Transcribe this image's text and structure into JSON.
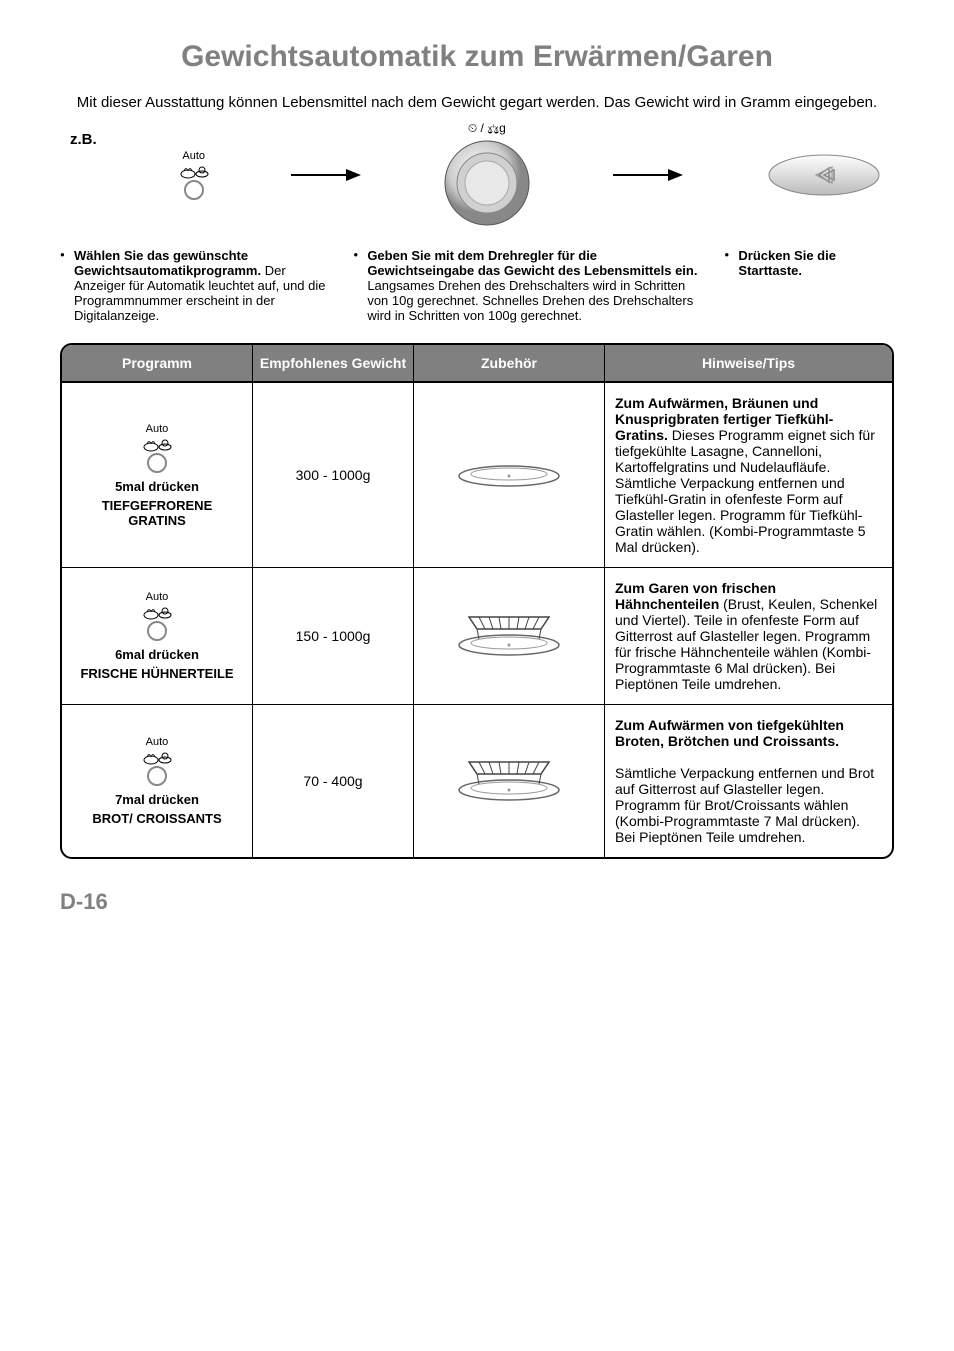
{
  "title": "Gewichtsautomatik zum Erwärmen/Garen",
  "intro": "Mit dieser Ausstattung können Lebensmittel nach dem Gewicht gegart werden. Das Gewicht wird in Gramm eingegeben.",
  "example_label": "z.B.",
  "auto_label": "Auto",
  "dial_icons": "⏲ / ⚖g",
  "steps": [
    {
      "bold": "Wählen Sie das gewünschte Gewichtsautomatikprogramm.",
      "text": " Der Anzeiger für Automatik leuchtet auf, und die Programmnummer erscheint in der Digitalanzeige."
    },
    {
      "bold": "Geben Sie mit dem Drehregler für die Gewichtseingabe das Gewicht des Lebensmittels ein.",
      "text": " Langsames Drehen des Drehschalters wird in Schritten von 10g gerechnet. Schnelles Drehen des Drehschalters wird in Schritten von 100g gerechnet."
    },
    {
      "bold": "Drücken Sie die Starttaste.",
      "text": ""
    }
  ],
  "table": {
    "headers": [
      "Programm",
      "Empfohlenes Gewicht",
      "Zubehör",
      "Hinweise/Tips"
    ],
    "rows": [
      {
        "press": "5mal drücken",
        "name": "TIEFGEFRORENE GRATINS",
        "weight": "300 - 1000g",
        "accessory": "plate",
        "tip_bold": "Zum Aufwärmen, Bräunen und Knusprigbraten fertiger Tiefkühl-Gratins.",
        "tip_text": " Dieses Programm eignet sich für tiefgekühlte Lasagne, Cannelloni, Kartoffelgratins und Nudelaufläufe. Sämtliche Verpackung entfernen und Tiefkühl-Gratin in ofenfeste Form auf Glasteller legen. Programm für Tiefkühl-Gratin wählen. (Kombi-Programmtaste 5 Mal drücken)."
      },
      {
        "press": "6mal drücken",
        "name": "FRISCHE HÜHNERTEILE",
        "weight": "150 - 1000g",
        "accessory": "rack_plate",
        "tip_bold": "Zum Garen von frischen Hähnchenteilen",
        "tip_text": " (Brust, Keulen, Schenkel und Viertel). Teile in ofenfeste Form auf Gitterrost auf Glasteller legen. Programm für frische Hähnchenteile wählen (Kombi-Programmtaste 6 Mal drücken). Bei Pieptönen Teile umdrehen."
      },
      {
        "press": "7mal drücken",
        "name": "BROT/ CROISSANTS",
        "weight": "70 - 400g",
        "accessory": "rack_plate",
        "tip_bold": "Zum Aufwärmen von tiefgekühlten Broten, Brötchen und Croissants.",
        "tip_text": "\nSämtliche Verpackung entfernen und Brot auf Gitterrost auf Glasteller legen. Programm für Brot/Croissants wählen (Kombi-Programmtaste 7 Mal drücken). Bei Pieptönen Teile umdrehen."
      }
    ]
  },
  "page_number": "D-16",
  "colors": {
    "title_gray": "#808080",
    "header_bg": "#808080",
    "header_fg": "#ffffff",
    "border": "#000000",
    "bg": "#ffffff"
  }
}
